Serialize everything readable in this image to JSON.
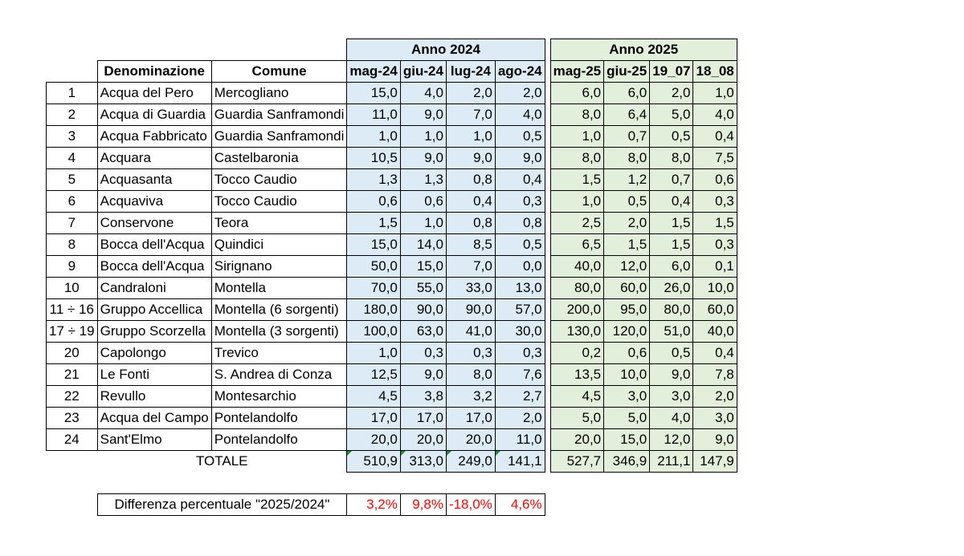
{
  "headers": {
    "anno2024": "Anno 2024",
    "anno2025": "Anno 2025",
    "denominazione": "Denominazione",
    "comune": "Comune",
    "m2024": [
      "mag-24",
      "giu-24",
      "lug-24",
      "ago-24"
    ],
    "m2025": [
      "mag-25",
      "giu-25",
      "19_07",
      "18_08"
    ]
  },
  "rows": [
    {
      "n": "1",
      "den": "Acqua del Pero",
      "com": "Mercogliano",
      "y24": [
        "15,0",
        "4,0",
        "2,0",
        "2,0"
      ],
      "y25": [
        "6,0",
        "6,0",
        "2,0",
        "1,0"
      ]
    },
    {
      "n": "2",
      "den": "Acqua di  Guardia",
      "com": "Guardia Sanframondi",
      "y24": [
        "11,0",
        "9,0",
        "7,0",
        "4,0"
      ],
      "y25": [
        "8,0",
        "6,4",
        "5,0",
        "4,0"
      ]
    },
    {
      "n": "3",
      "den": "Acqua Fabbricato",
      "com": "Guardia Sanframondi",
      "y24": [
        "1,0",
        "1,0",
        "1,0",
        "0,5"
      ],
      "y25": [
        "1,0",
        "0,7",
        "0,5",
        "0,4"
      ]
    },
    {
      "n": "4",
      "den": "Acquara",
      "com": "Castelbaronia",
      "y24": [
        "10,5",
        "9,0",
        "9,0",
        "9,0"
      ],
      "y25": [
        "8,0",
        "8,0",
        "8,0",
        "7,5"
      ]
    },
    {
      "n": "5",
      "den": "Acquasanta",
      "com": "Tocco Caudio",
      "y24": [
        "1,3",
        "1,3",
        "0,8",
        "0,4"
      ],
      "y25": [
        "1,5",
        "1,2",
        "0,7",
        "0,6"
      ]
    },
    {
      "n": "6",
      "den": "Acquaviva",
      "com": "Tocco Caudio",
      "y24": [
        "0,6",
        "0,6",
        "0,4",
        "0,3"
      ],
      "y25": [
        "1,0",
        "0,5",
        "0,4",
        "0,3"
      ]
    },
    {
      "n": "7",
      "den": "Conservone",
      "com": "Teora",
      "y24": [
        "1,5",
        "1,0",
        "0,8",
        "0,8"
      ],
      "y25": [
        "2,5",
        "2,0",
        "1,5",
        "1,5"
      ]
    },
    {
      "n": "8",
      "den": "Bocca dell'Acqua",
      "com": "Quindici",
      "y24": [
        "15,0",
        "14,0",
        "8,5",
        "0,5"
      ],
      "y25": [
        "6,5",
        "1,5",
        "1,5",
        "0,3"
      ]
    },
    {
      "n": "9",
      "den": "Bocca dell'Acqua",
      "com": "Sirignano",
      "y24": [
        "50,0",
        "15,0",
        "7,0",
        "0,0"
      ],
      "y25": [
        "40,0",
        "12,0",
        "6,0",
        "0,1"
      ]
    },
    {
      "n": "10",
      "den": "Candraloni",
      "com": "Montella",
      "y24": [
        "70,0",
        "55,0",
        "33,0",
        "13,0"
      ],
      "y25": [
        "80,0",
        "60,0",
        "26,0",
        "10,0"
      ]
    },
    {
      "n": "11 ÷ 16",
      "den": "Gruppo Accellica",
      "com": "Montella (6 sorgenti)",
      "y24": [
        "180,0",
        "90,0",
        "90,0",
        "57,0"
      ],
      "y25": [
        "200,0",
        "95,0",
        "80,0",
        "60,0"
      ]
    },
    {
      "n": "17 ÷ 19",
      "den": "Gruppo Scorzella",
      "com": "Montella (3 sorgenti)",
      "y24": [
        "100,0",
        "63,0",
        "41,0",
        "30,0"
      ],
      "y25": [
        "130,0",
        "120,0",
        "51,0",
        "40,0"
      ]
    },
    {
      "n": "20",
      "den": "Capolongo",
      "com": "Trevico",
      "y24": [
        "1,0",
        "0,3",
        "0,3",
        "0,3"
      ],
      "y25": [
        "0,2",
        "0,6",
        "0,5",
        "0,4"
      ]
    },
    {
      "n": "21",
      "den": "Le Fonti",
      "com": "S. Andrea di Conza",
      "y24": [
        "12,5",
        "9,0",
        "8,0",
        "7,6"
      ],
      "y25": [
        "13,5",
        "10,0",
        "9,0",
        "7,8"
      ]
    },
    {
      "n": "22",
      "den": "Revullo",
      "com": "Montesarchio",
      "y24": [
        "4,5",
        "3,8",
        "3,2",
        "2,7"
      ],
      "y25": [
        "4,5",
        "3,0",
        "3,0",
        "2,0"
      ]
    },
    {
      "n": "23",
      "den": "Acqua del Campo",
      "com": "Pontelandolfo",
      "y24": [
        "17,0",
        "17,0",
        "17,0",
        "2,0"
      ],
      "y25": [
        "5,0",
        "5,0",
        "4,0",
        "3,0"
      ]
    },
    {
      "n": "24",
      "den": "Sant'Elmo",
      "com": "Pontelandolfo",
      "y24": [
        "20,0",
        "20,0",
        "20,0",
        "11,0"
      ],
      "y25": [
        "20,0",
        "15,0",
        "12,0",
        "9,0"
      ]
    }
  ],
  "totale": {
    "label": "TOTALE",
    "y24": [
      "510,9",
      "313,0",
      "249,0",
      "141,1"
    ],
    "y25": [
      "527,7",
      "346,9",
      "211,1",
      "147,9"
    ]
  },
  "diff": {
    "label": "Differenza percentuale \"2025/2024\"",
    "values": [
      "3,2%",
      "9,8%",
      "-18,0%",
      "4,6%"
    ]
  },
  "colors": {
    "blue": "#ddebf7",
    "green": "#e2efda",
    "red": "#ff0000",
    "flag": "#1e8a3a"
  }
}
